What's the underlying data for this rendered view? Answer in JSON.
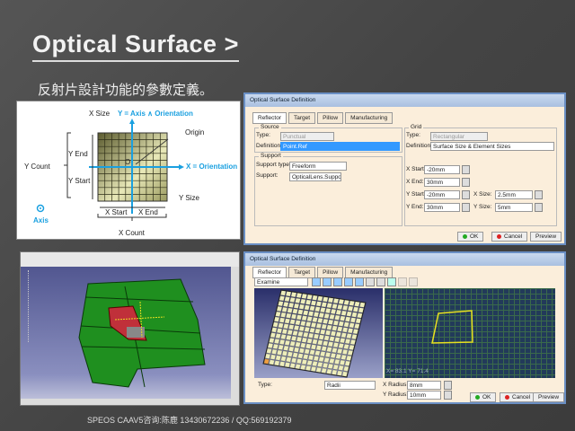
{
  "slide": {
    "title": "Optical Surface >",
    "subtitle": "反射片設計功能的參數定義。",
    "footer": "SPEOS  CAAV5咨询:陈鹿 13430672236 / QQ:569192379"
  },
  "diagram": {
    "labels": {
      "x_size": "X Size",
      "y_axis": "Y = Axis ∧ Orientation",
      "origin": "Origin",
      "origin_mark": "O",
      "y_end": "Y End",
      "y_count": "Y Count",
      "x_axis": "X = Orientation",
      "y_start": "Y Start",
      "y_size": "Y Size",
      "axis": "Axis",
      "x_start": "X Start",
      "x_end": "X End",
      "x_count": "X Count"
    },
    "accent": "#1aa0e0",
    "grid_color": "#6b6b3a"
  },
  "dialog1": {
    "title": "Optical Surface Definition",
    "tabs": [
      "Reflector",
      "Target",
      "Pillow",
      "Manufacturing"
    ],
    "source": {
      "label": "Source",
      "type_label": "Type:",
      "type_value": "Punctual",
      "def_label": "Definition:",
      "def_value": "Point.Ref"
    },
    "support": {
      "label": "Support",
      "type_label": "Support type:",
      "type_value": "Freeform",
      "support_label": "Support:",
      "support_value": "OpticalLens.Support"
    },
    "grid": {
      "label": "Grid",
      "type_label": "Type:",
      "type_value": "Rectangular",
      "def_label": "Definition:",
      "def_value": "Surface Size & Element Sizes",
      "x_start_label": "X Start:",
      "x_start": "-20mm",
      "x_end_label": "X End:",
      "x_end": "30mm",
      "y_start_label": "Y Start:",
      "y_start": "-20mm",
      "y_end_label": "Y End:",
      "y_end": "30mm",
      "x_size_label": "X Size:",
      "x_size": "2.5mm",
      "y_size_label": "Y Size:",
      "y_size": "5mm"
    },
    "buttons": {
      "ok": "OK",
      "cancel": "Cancel",
      "preview": "Preview"
    }
  },
  "dialog2": {
    "title": "Optical Surface Definition",
    "tabs": [
      "Reflector",
      "Target",
      "Pillow",
      "Manufacturing"
    ],
    "view_mode": "Examine",
    "coords": "X= 83.1 Y= 71.4",
    "type_label": "Type:",
    "type_value": "Radii",
    "x_radius_label": "X  Radius:",
    "x_radius": "8mm",
    "y_radius_label": "Y  Radius:",
    "y_radius": "10mm",
    "buttons": {
      "ok": "OK",
      "cancel": "Cancel",
      "preview": "Preview"
    }
  },
  "colors": {
    "ok": "#22aa22",
    "cancel": "#dd2222",
    "body_green": "#1f8f1f",
    "lamp_red": "#c0303a",
    "preview_line": "#e8e020"
  }
}
